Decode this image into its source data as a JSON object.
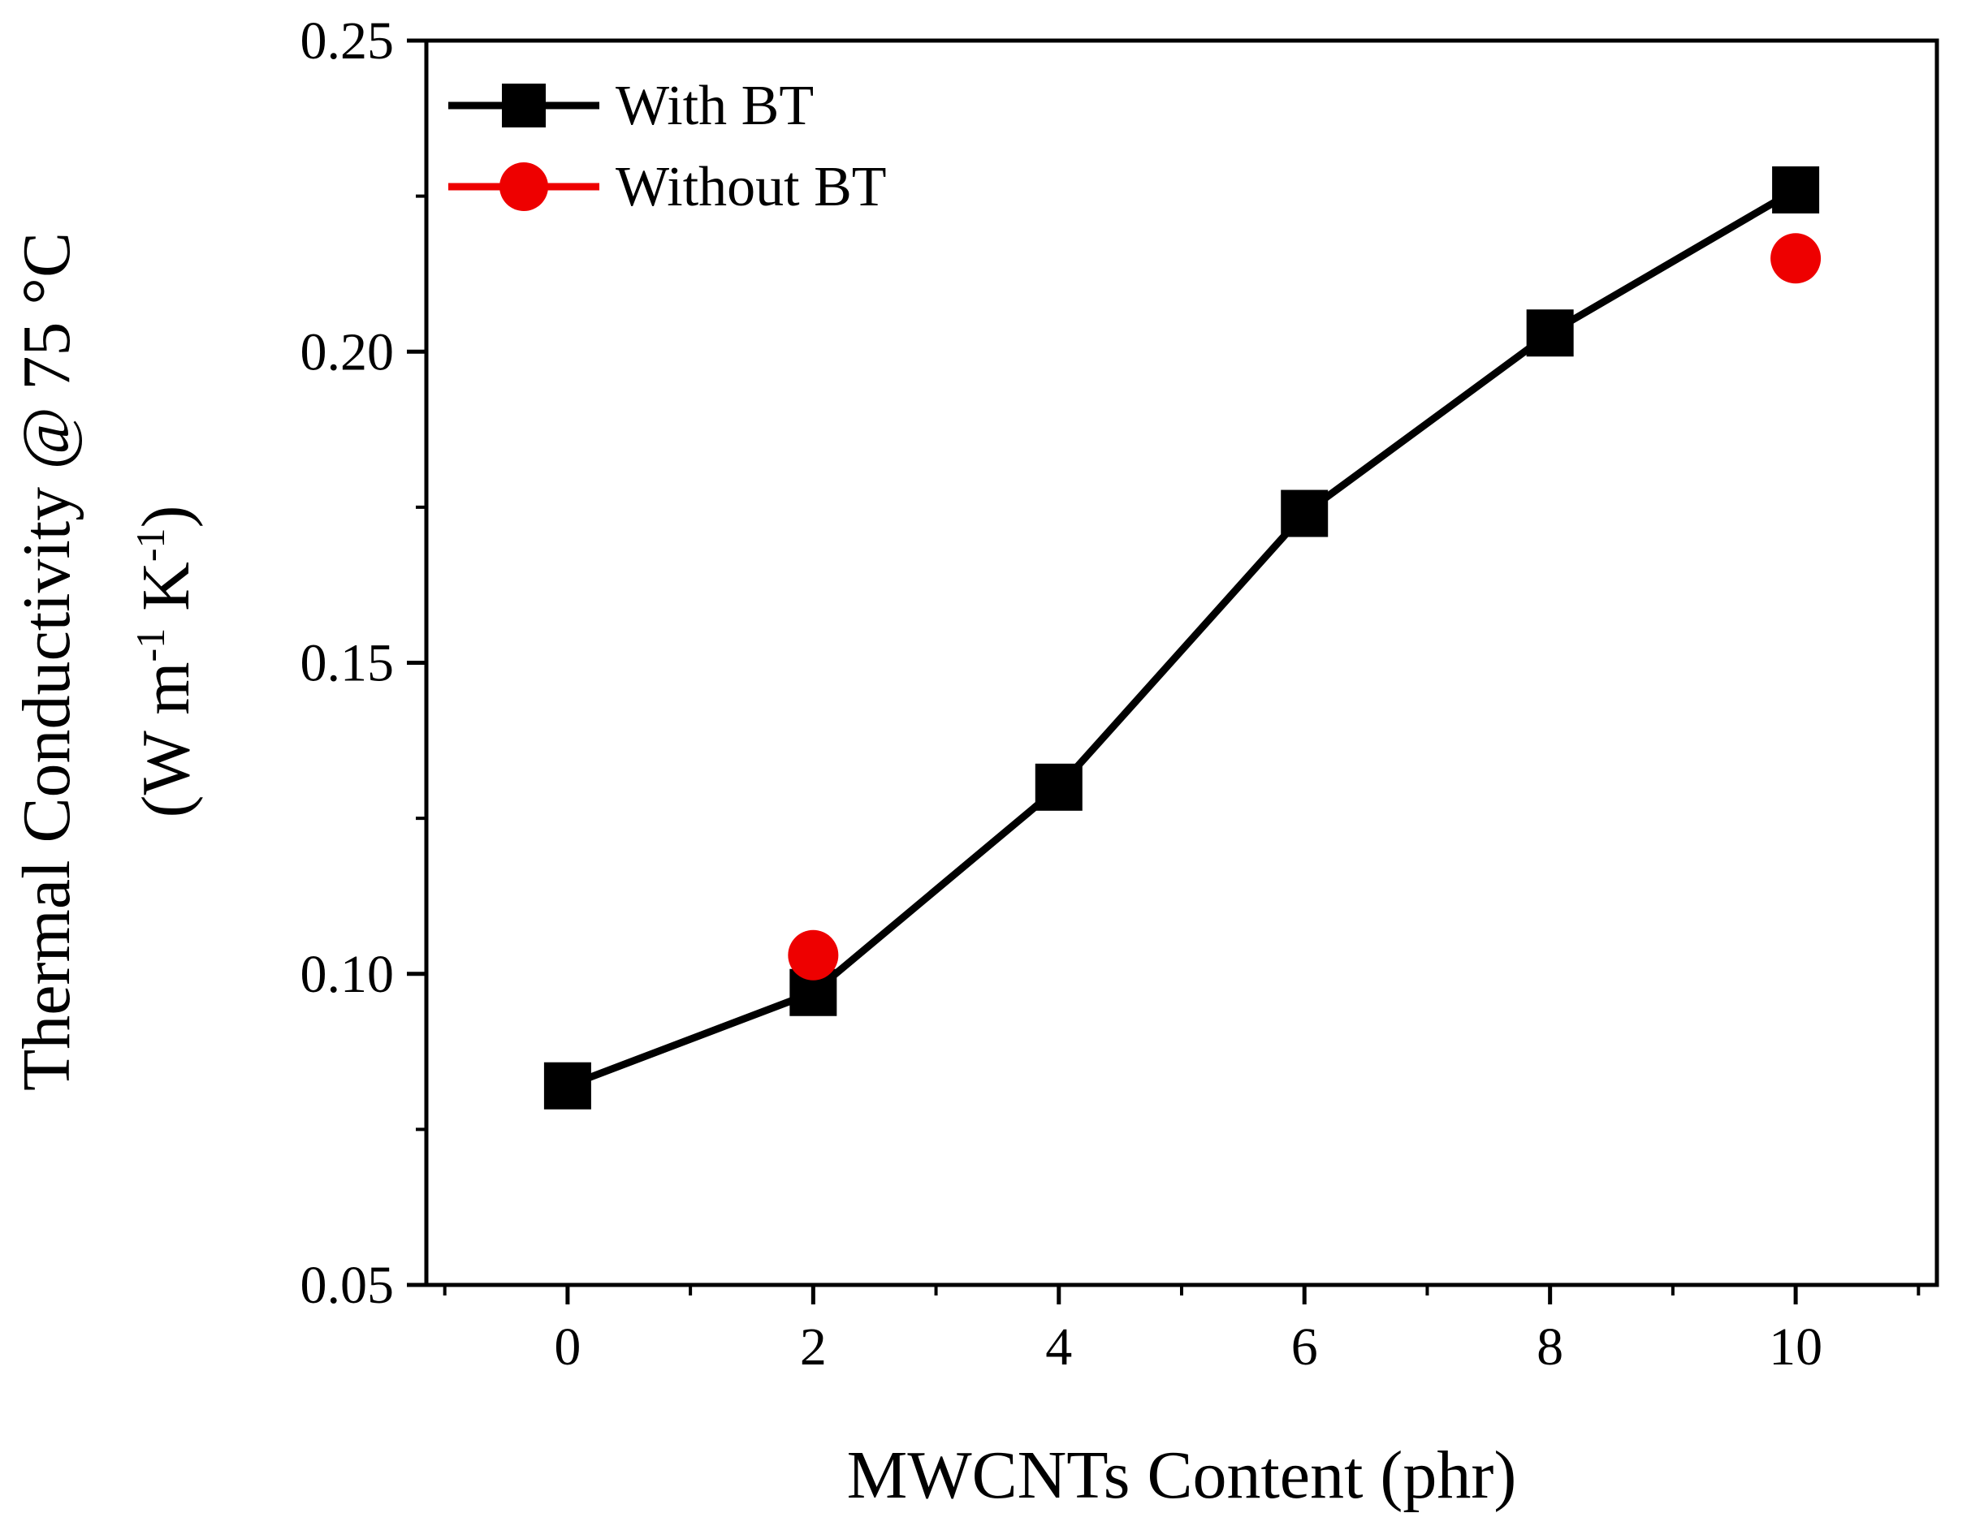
{
  "chart_data": {
    "type": "line",
    "xlabel": "MWCNTs Content (phr)",
    "ylabel_line1_parts": [
      "Thermal Conductivity ",
      "@",
      " 75 °C"
    ],
    "ylabel_line2_parts": [
      "(W m",
      "-1",
      " K",
      "-1",
      ")"
    ],
    "xlim": [
      -1.15,
      11.15
    ],
    "ylim": [
      0.05,
      0.25
    ],
    "xticks": [
      0,
      2,
      4,
      6,
      8,
      10
    ],
    "xtick_labels": [
      "0",
      "2",
      "4",
      "6",
      "8",
      "10"
    ],
    "yticks": [
      0.05,
      0.1,
      0.15,
      0.2,
      0.25
    ],
    "ytick_labels": [
      "0.05",
      "0.10",
      "0.15",
      "0.20",
      "0.25"
    ],
    "legend_position": "top-left",
    "series": [
      {
        "name": "With BT",
        "color": "#000000",
        "marker": "square",
        "line": true,
        "x": [
          0,
          2,
          4,
          6,
          8,
          10
        ],
        "y": [
          0.082,
          0.097,
          0.13,
          0.174,
          0.203,
          0.226
        ]
      },
      {
        "name": "Without BT",
        "color": "#ee0000",
        "marker": "circle",
        "line": false,
        "x": [
          2,
          10
        ],
        "y": [
          0.103,
          0.215
        ]
      }
    ]
  }
}
